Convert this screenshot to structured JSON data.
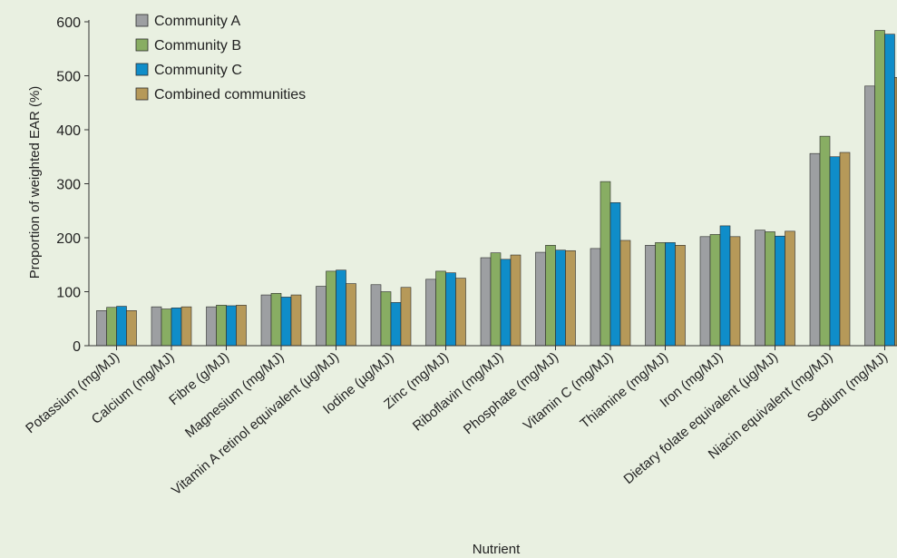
{
  "chart_data": {
    "type": "bar",
    "title": "",
    "xlabel": "Nutrient",
    "ylabel": "Proportion of weighted EAR (%)",
    "ylim": [
      0,
      600
    ],
    "yticks": [
      0,
      100,
      200,
      300,
      400,
      500,
      600
    ],
    "grid": false,
    "legend_position": "top-left",
    "categories": [
      "Potassium (mg/MJ)",
      "Calcium (mg/MJ)",
      "Fibre (g/MJ)",
      "Magnesium (mg/MJ)",
      "Vitamin A retinol equivalent (µg/MJ)",
      "Iodine (µg/MJ)",
      "Zinc (mg/MJ)",
      "Riboflavin (mg/MJ)",
      "Phosphate (mg/MJ)",
      "Vitamin C (mg/MJ)",
      "Thiamine (mg/MJ)",
      "Iron (mg/MJ)",
      "Dietary folate equivalent (µg/MJ)",
      "Niacin equivalent (mg/MJ)",
      "Sodium (mg/MJ)"
    ],
    "series": [
      {
        "name": "Community A",
        "color": "#9d9fa2",
        "values": [
          65,
          72,
          72,
          94,
          110,
          113,
          123,
          163,
          173,
          180,
          186,
          202,
          214,
          356,
          481
        ]
      },
      {
        "name": "Community B",
        "color": "#88ad63",
        "values": [
          71,
          68,
          75,
          97,
          138,
          100,
          138,
          172,
          186,
          304,
          191,
          206,
          211,
          388,
          584
        ]
      },
      {
        "name": "Community C",
        "color": "#0f8dc9",
        "values": [
          73,
          70,
          74,
          90,
          140,
          80,
          135,
          160,
          177,
          265,
          191,
          222,
          203,
          350,
          577
        ]
      },
      {
        "name": "Combined communities",
        "color": "#b69959",
        "values": [
          65,
          72,
          75,
          94,
          115,
          108,
          125,
          168,
          176,
          195,
          186,
          202,
          212,
          358,
          497
        ]
      }
    ]
  }
}
